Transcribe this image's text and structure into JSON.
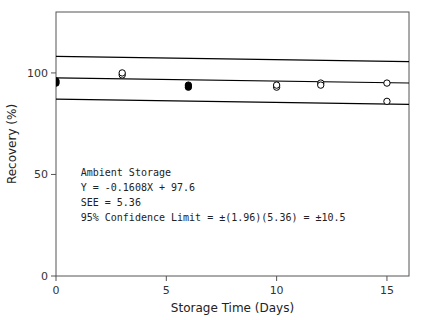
{
  "chart_data": {
    "type": "scatter",
    "xlabel": "Storage Time (Days)",
    "ylabel": "Recovery (%)",
    "annotations": [
      "Ambient Storage",
      "Y = -0.1608X + 97.6",
      "SEE = 5.36",
      "95% Confidence Limit = ±(1.96)(5.36) = ±10.5"
    ],
    "xlim": [
      0,
      16
    ],
    "ylim": [
      0,
      130
    ],
    "xticks": [
      0,
      5,
      10,
      15
    ],
    "yticks": [
      0,
      50,
      100
    ],
    "grid": false,
    "series": [
      {
        "type": "line",
        "color": "black",
        "x": [
          0,
          16
        ],
        "values": [
          108.1,
          105.5272
        ]
      },
      {
        "type": "line",
        "color": "black",
        "x": [
          0,
          16
        ],
        "values": [
          87.1,
          84.5272
        ]
      },
      {
        "type": "line",
        "color": "black",
        "x": [
          0,
          16
        ],
        "values": [
          97.6,
          95.0272
        ]
      },
      {
        "type": "scatter",
        "marker": "open-circle",
        "color": "black",
        "x": [
          3,
          3,
          10,
          10,
          12,
          12,
          15,
          15
        ],
        "values": [
          99,
          100,
          93,
          94,
          95,
          94,
          95,
          86
        ]
      },
      {
        "type": "scatter",
        "marker": "circle",
        "color": "black",
        "x": [
          0,
          0,
          6,
          6
        ],
        "values": [
          96,
          95,
          94,
          93
        ]
      }
    ]
  }
}
